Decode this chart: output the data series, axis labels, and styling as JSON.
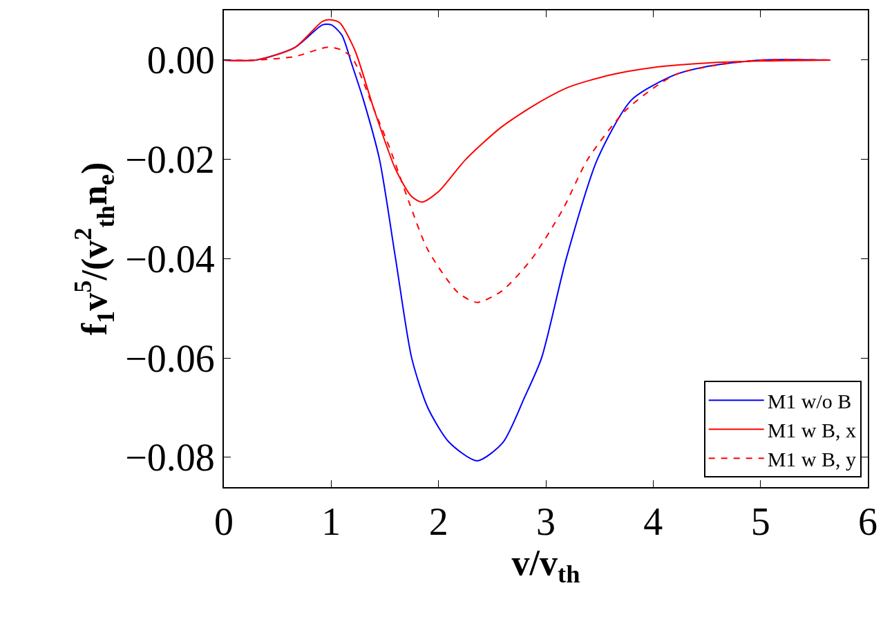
{
  "chart_data": {
    "type": "line",
    "xlabel": "v/v$_{th}$",
    "ylabel": "f$_{1}$v$^{5}$/(v$^{2}$$_{th}$n$_{e}$)",
    "xlim": [
      0,
      6
    ],
    "xticks": [
      0,
      1,
      2,
      3,
      4,
      5,
      6
    ],
    "ylim": [
      -0.086,
      0.01
    ],
    "yticks": [
      {
        "value": 0,
        "label": "0.00"
      },
      {
        "value": -0.02,
        "label": "−0.02"
      },
      {
        "value": -0.04,
        "label": "−0.04"
      },
      {
        "value": -0.06,
        "label": "−0.06"
      },
      {
        "value": -0.08,
        "label": "−0.08"
      }
    ],
    "legend": "bottom right",
    "series": [
      {
        "name": "M1 w/o B",
        "color": "#0000ff",
        "line_style": "solid",
        "x": [
          0,
          0.3,
          0.66,
          0.92,
          1.0,
          1.1,
          1.19,
          1.3,
          1.45,
          1.6,
          1.75,
          1.9,
          2.1,
          2.36,
          2.6,
          2.8,
          2.96,
          3.19,
          3.48,
          3.8,
          4.2,
          4.5,
          5.0,
          5.65
        ],
        "values": [
          0,
          0,
          0.0025,
          0.0071,
          0.0071,
          0.005,
          -0.0007,
          -0.008,
          -0.02,
          -0.04,
          -0.06,
          -0.07,
          -0.077,
          -0.0807,
          -0.077,
          -0.068,
          -0.06,
          -0.04,
          -0.02,
          -0.008,
          -0.003,
          -0.0013,
          0,
          0
        ]
      },
      {
        "name": "M1 w B, x",
        "color": "#ff0000",
        "line_style": "solid",
        "x": [
          0,
          0.3,
          0.66,
          0.92,
          1.0,
          1.08,
          1.22,
          1.4,
          1.6,
          1.75,
          1.85,
          2.0,
          2.25,
          2.58,
          2.9,
          3.22,
          3.6,
          4.0,
          4.5,
          5.0,
          5.65
        ],
        "values": [
          0,
          0,
          0.0025,
          0.0078,
          0.0081,
          0.0075,
          0.002,
          -0.01,
          -0.022,
          -0.0275,
          -0.0286,
          -0.0265,
          -0.0201,
          -0.0136,
          -0.009,
          -0.0054,
          -0.003,
          -0.0015,
          -0.0006,
          -0.0002,
          0
        ]
      },
      {
        "name": "M1 w B, y",
        "color": "#ff0000",
        "line_style": "dashed",
        "x": [
          0,
          0.3,
          0.66,
          0.97,
          1.1,
          1.2,
          1.4,
          1.55,
          1.73,
          1.9,
          2.18,
          2.36,
          2.59,
          2.87,
          3.16,
          3.39,
          3.75,
          4.2,
          4.6,
          5.0,
          5.65
        ],
        "values": [
          0,
          0,
          0.0007,
          0.0026,
          0.002,
          0.0003,
          -0.01,
          -0.018,
          -0.0289,
          -0.0382,
          -0.0468,
          -0.0488,
          -0.0465,
          -0.04,
          -0.03,
          -0.02,
          -0.01,
          -0.003,
          -0.001,
          0,
          0
        ]
      }
    ]
  }
}
